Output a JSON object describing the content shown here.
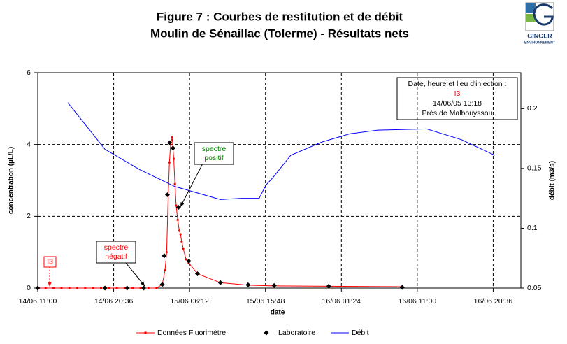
{
  "chart_data": {
    "type": "line",
    "title": "Figure 7 : Courbes de restitution et de débit",
    "subtitle": "Moulin de Sénaillac (Tolerme) - Résultats nets",
    "x_label": "date",
    "y_label": "concentration (µL/L)",
    "y2_label": "débit (m3/s)",
    "xlim": [
      11,
      72.1
    ],
    "xticks": [
      {
        "value": 11,
        "label": "14/06 11:00"
      },
      {
        "value": 20.6,
        "label": "14/06 20:36"
      },
      {
        "value": 30.2,
        "label": "15/06 06:12"
      },
      {
        "value": 39.8,
        "label": "15/06 15:48"
      },
      {
        "value": 49.4,
        "label": "16/06 01:24"
      },
      {
        "value": 59,
        "label": "16/06 11:00"
      },
      {
        "value": 68.6,
        "label": "16/06 20:36"
      }
    ],
    "ylim": [
      0,
      6
    ],
    "yticks": [
      0,
      2,
      4,
      6
    ],
    "y2lim": [
      0.05,
      0.23
    ],
    "y2ticks": [
      0.05,
      0.1,
      0.15,
      0.2
    ],
    "grid": true,
    "legend": "bottom",
    "series": [
      {
        "name": "Données Fluorimètre",
        "color": "#ff0000",
        "mode": "line+markers",
        "x": [
          11,
          12,
          13,
          14,
          15,
          16,
          17,
          18,
          19,
          20,
          21,
          22,
          23,
          24,
          25,
          26,
          26.75,
          27.1,
          27.3,
          27.5,
          27.65,
          27.8,
          28.0,
          28.2,
          28.35,
          28.5,
          28.7,
          28.9,
          29.05,
          29.2,
          29.4,
          29.75,
          30.1,
          31.2,
          34.1,
          37.6,
          40.9,
          47.8,
          57.1
        ],
        "values": [
          0,
          0,
          0,
          0,
          0,
          0,
          0,
          0,
          0,
          0,
          0,
          0,
          0,
          0,
          0,
          0,
          0.1,
          0.5,
          1.0,
          2.6,
          3.5,
          4.0,
          4.2,
          3.6,
          2.9,
          2.3,
          1.9,
          1.6,
          1.5,
          1.3,
          1.1,
          0.8,
          0.7,
          0.4,
          0.15,
          0.08,
          0.06,
          0.05,
          0.04
        ]
      },
      {
        "name": "Laboratoire",
        "color": "#000000",
        "mode": "markers",
        "x": [
          11,
          19.5,
          22.3,
          24.4,
          26.75,
          27.0,
          27.4,
          27.7,
          28.1,
          28.8,
          30.1,
          31.2,
          34.1,
          37.6,
          40.9,
          47.8,
          57.1
        ],
        "values": [
          0,
          0,
          0,
          0,
          0.1,
          0.9,
          2.6,
          4.05,
          3.9,
          2.25,
          0.75,
          0.4,
          0.15,
          0.09,
          0.07,
          0.05,
          0.02
        ]
      },
      {
        "name": "Débit",
        "color": "#0000ff",
        "mode": "line",
        "axis": "y2",
        "x": [
          14.8,
          19.5,
          23.9,
          28.3,
          34.1,
          36.75,
          39.0,
          39.85,
          40.7,
          43.0,
          46.9,
          50.5,
          54.0,
          60.2,
          64.6,
          68.8
        ],
        "values": [
          0.205,
          0.166,
          0.149,
          0.135,
          0.124,
          0.125,
          0.125,
          0.136,
          0.142,
          0.161,
          0.172,
          0.179,
          0.182,
          0.183,
          0.174,
          0.161
        ]
      }
    ],
    "injection_box": {
      "heading": "Date, heure et lieu d'injection :",
      "site": "I3",
      "datetime": "14/06/05 13:18",
      "place": "Près de Malbouyssou"
    },
    "callouts": [
      {
        "lines": [
          "spectre",
          "positif"
        ],
        "color": "#008000"
      },
      {
        "lines": [
          "spectre",
          "négatif"
        ],
        "color": "#ff0000"
      },
      {
        "lines": [
          "I3"
        ],
        "color": "#ff0000"
      }
    ]
  },
  "logo": {
    "name": "GINGER",
    "tagline": "ENVIRONNEMENT"
  }
}
